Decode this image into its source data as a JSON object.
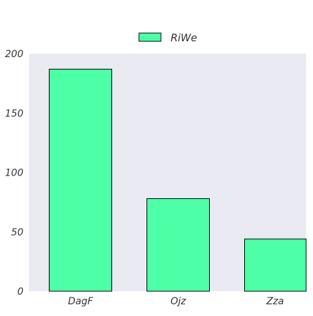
{
  "chart_data": {
    "type": "bar",
    "categories": [
      "DagF",
      "Ojz",
      "Zza"
    ],
    "series": [
      {
        "name": "RiWe",
        "values": [
          187,
          78,
          44
        ],
        "color": "#4dffa6"
      }
    ],
    "xlabel": "",
    "ylabel": "",
    "ylim": [
      0,
      200
    ],
    "yticks": [
      0,
      50,
      100,
      150,
      200
    ],
    "grid": false,
    "legend": "top-center",
    "background_color": "#eaeaf2",
    "bar_edge_color": "#000000"
  }
}
